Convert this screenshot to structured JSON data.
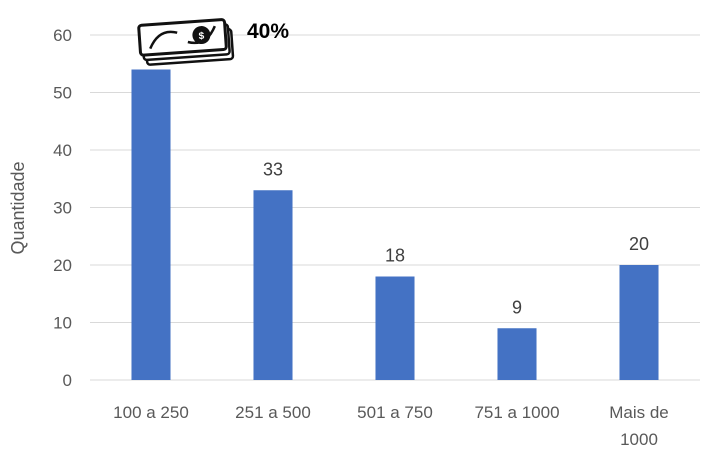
{
  "chart_data": {
    "type": "bar",
    "categories": [
      "100 a 250",
      "251 a 500",
      "501 a 750",
      "751 a 1000",
      "Mais de 1000"
    ],
    "category_lines": [
      [
        "100 a 250"
      ],
      [
        "251 a 500"
      ],
      [
        "501 a 750"
      ],
      [
        "751 a 1000"
      ],
      [
        "Mais de",
        "1000"
      ]
    ],
    "values": [
      54,
      33,
      18,
      9,
      20
    ],
    "ylabel": "Quantidade",
    "xlabel": "",
    "ylim": [
      0,
      60
    ],
    "yticks": [
      0,
      10,
      20,
      30,
      40,
      50,
      60
    ],
    "grid": true,
    "legend": "none",
    "bar_color": "#4472C4",
    "grid_color": "#D9D9D9",
    "annotation": {
      "text": "40%",
      "icon": "money-bills-icon"
    }
  }
}
